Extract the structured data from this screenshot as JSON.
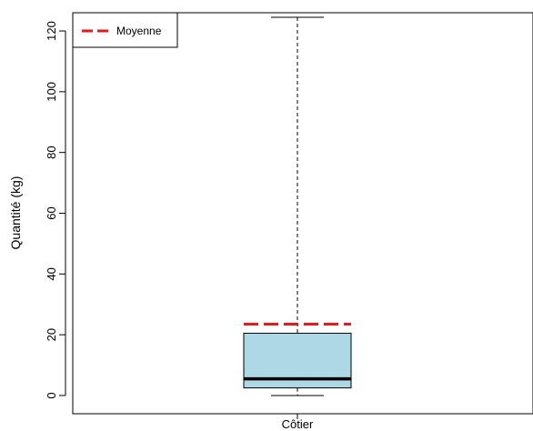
{
  "chart_data": {
    "type": "box",
    "title": "",
    "xlabel": "",
    "ylabel": "Quantité (kg)",
    "ylim": [
      -6,
      126
    ],
    "yticks": [
      0,
      20,
      40,
      60,
      80,
      100,
      120
    ],
    "grid": false,
    "legend": {
      "placement": "top-left",
      "entries": [
        {
          "label": "Moyenne",
          "color": "#e41a1c",
          "style": "dashed"
        }
      ]
    },
    "categories": [
      "Côtier"
    ],
    "boxes": [
      {
        "category": "Côtier",
        "min": 0,
        "q1": 2.5,
        "median": 5.5,
        "q3": 20.5,
        "max": 124.5,
        "mean": 23.5,
        "fill": "#add8e6"
      }
    ]
  }
}
